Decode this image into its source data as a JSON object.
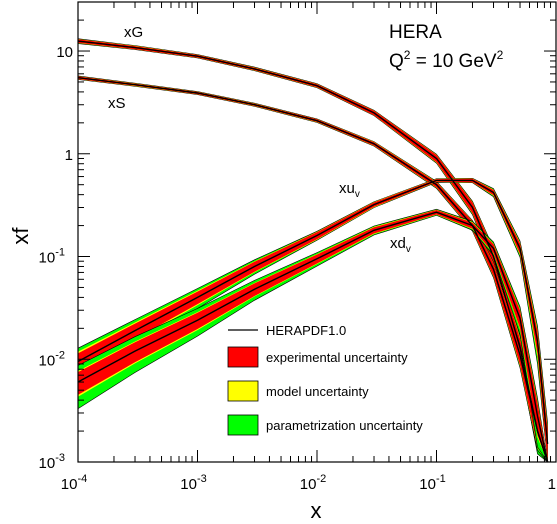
{
  "chart_data": {
    "type": "line",
    "title_lines": [
      "HERA",
      "Q",
      "2",
      " = 10 GeV",
      "2"
    ],
    "xlabel": "x",
    "ylabel": "xf",
    "xscale": "log",
    "yscale": "log",
    "xlim": [
      0.0001,
      1
    ],
    "ylim": [
      0.001,
      30
    ],
    "x_ticks": [
      {
        "base": "10",
        "exp": "-4",
        "value": 0.0001
      },
      {
        "base": "10",
        "exp": "-3",
        "value": 0.001
      },
      {
        "base": "10",
        "exp": "-2",
        "value": 0.01
      },
      {
        "base": "10",
        "exp": "-1",
        "value": 0.1
      },
      {
        "base": "1",
        "exp": "",
        "value": 1
      }
    ],
    "y_ticks": [
      {
        "base": "10",
        "exp": "-3",
        "value": 0.001
      },
      {
        "base": "10",
        "exp": "-2",
        "value": 0.01
      },
      {
        "base": "10",
        "exp": "-1",
        "value": 0.1
      },
      {
        "base": "1",
        "exp": "",
        "value": 1
      },
      {
        "base": "10",
        "exp": "",
        "value": 10
      }
    ],
    "legend": {
      "placement": "lower-center",
      "entries": [
        {
          "label": "HERAPDF1.0",
          "kind": "line",
          "color": "#000000"
        },
        {
          "label": "experimental uncertainty",
          "kind": "box",
          "color": "#ff0000"
        },
        {
          "label": "model uncertainty",
          "kind": "box",
          "color": "#ffff00"
        },
        {
          "label": "parametrization uncertainty",
          "kind": "box",
          "color": "#00ff00"
        }
      ]
    },
    "colors": {
      "experimental": "#ff0000",
      "model": "#ffff00",
      "parametrization": "#00ff00",
      "central": "#000000"
    },
    "series": [
      {
        "name": "xG",
        "label_main": "xG",
        "label_sub": "",
        "x": [
          0.0001,
          0.0003,
          0.001,
          0.003,
          0.01,
          0.03,
          0.1,
          0.2,
          0.3,
          0.5,
          0.7,
          0.85
        ],
        "central": [
          12.5,
          10.8,
          8.9,
          6.7,
          4.6,
          2.5,
          0.9,
          0.3,
          0.1,
          0.013,
          0.002,
          0.0005
        ],
        "exp": [
          0.04,
          0.035,
          0.03,
          0.03,
          0.035,
          0.05,
          0.08,
          0.12,
          0.16,
          0.22,
          0.3,
          0.4
        ],
        "model": [
          0.045,
          0.04,
          0.035,
          0.035,
          0.04,
          0.055,
          0.09,
          0.13,
          0.18,
          0.25,
          0.35,
          0.45
        ],
        "param": [
          0.055,
          0.045,
          0.04,
          0.04,
          0.045,
          0.06,
          0.1,
          0.15,
          0.2,
          0.3,
          0.4,
          0.5
        ]
      },
      {
        "name": "xS",
        "label_main": "xS",
        "label_sub": "",
        "x": [
          0.0001,
          0.0003,
          0.001,
          0.003,
          0.01,
          0.03,
          0.1,
          0.2,
          0.3,
          0.5,
          0.7,
          0.85
        ],
        "central": [
          5.5,
          4.7,
          3.9,
          3.0,
          2.1,
          1.25,
          0.5,
          0.2,
          0.075,
          0.011,
          0.002,
          0.0004
        ],
        "exp": [
          0.03,
          0.025,
          0.025,
          0.025,
          0.03,
          0.04,
          0.06,
          0.1,
          0.14,
          0.2,
          0.3,
          0.4
        ],
        "model": [
          0.035,
          0.03,
          0.03,
          0.03,
          0.035,
          0.045,
          0.07,
          0.11,
          0.15,
          0.22,
          0.32,
          0.42
        ],
        "param": [
          0.04,
          0.035,
          0.035,
          0.035,
          0.04,
          0.05,
          0.08,
          0.12,
          0.17,
          0.25,
          0.35,
          0.45
        ]
      },
      {
        "name": "xuv",
        "label_main": "xu",
        "label_sub": "v",
        "x": [
          0.0001,
          0.0003,
          0.001,
          0.003,
          0.01,
          0.03,
          0.1,
          0.2,
          0.3,
          0.5,
          0.7,
          0.85
        ],
        "central": [
          0.0095,
          0.019,
          0.04,
          0.08,
          0.16,
          0.32,
          0.55,
          0.55,
          0.42,
          0.12,
          0.015,
          0.0015
        ],
        "exp": [
          0.2,
          0.17,
          0.14,
          0.11,
          0.08,
          0.05,
          0.03,
          0.04,
          0.06,
          0.12,
          0.25,
          0.4
        ],
        "model": [
          0.25,
          0.2,
          0.16,
          0.12,
          0.09,
          0.06,
          0.035,
          0.045,
          0.07,
          0.14,
          0.3,
          0.45
        ],
        "param": [
          0.35,
          0.28,
          0.22,
          0.16,
          0.1,
          0.065,
          0.04,
          0.05,
          0.09,
          0.18,
          0.4,
          0.6
        ]
      },
      {
        "name": "xdv",
        "label_main": "xd",
        "label_sub": "v",
        "x": [
          0.0001,
          0.0003,
          0.001,
          0.003,
          0.01,
          0.03,
          0.1,
          0.2,
          0.3,
          0.5,
          0.7,
          0.85
        ],
        "central": [
          0.006,
          0.012,
          0.024,
          0.048,
          0.095,
          0.18,
          0.27,
          0.2,
          0.12,
          0.025,
          0.0028,
          0.0004
        ],
        "exp": [
          0.25,
          0.22,
          0.18,
          0.14,
          0.1,
          0.07,
          0.05,
          0.07,
          0.1,
          0.2,
          0.35,
          0.5
        ],
        "model": [
          0.28,
          0.24,
          0.2,
          0.15,
          0.11,
          0.08,
          0.055,
          0.08,
          0.11,
          0.22,
          0.38,
          0.55
        ],
        "param": [
          0.45,
          0.38,
          0.3,
          0.22,
          0.15,
          0.1,
          0.07,
          0.1,
          0.15,
          0.3,
          0.5,
          0.7
        ]
      }
    ]
  }
}
